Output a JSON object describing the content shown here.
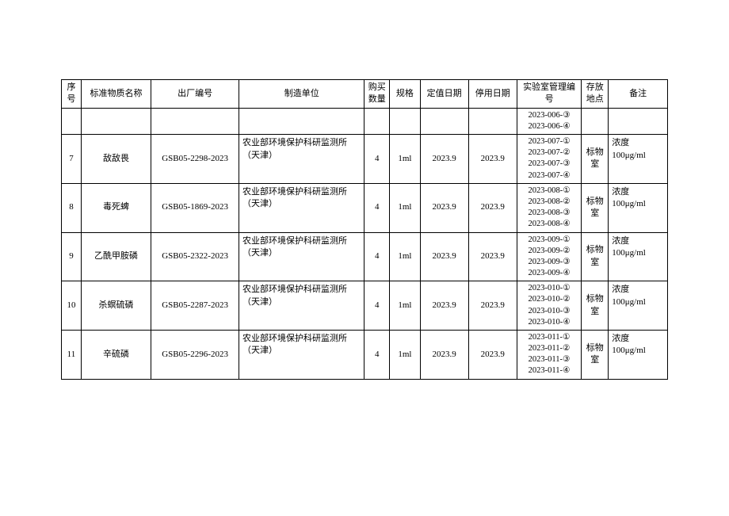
{
  "headers": {
    "seq": "序号",
    "name": "标准物质名称",
    "factory_no": "出厂编号",
    "manufacturer": "制造单位",
    "qty": "购买数量",
    "spec": "规格",
    "cal_date": "定值日期",
    "exp_date": "停用日期",
    "lab_no": "实验室管理编号",
    "location": "存放地点",
    "remark": "备注"
  },
  "top_row": {
    "lab1": "2023-006-③",
    "lab2": "2023-006-④"
  },
  "rows": [
    {
      "seq": "7",
      "name": "敌敌畏",
      "factory_no": "GSB05-2298-2023",
      "mfg1": "农业部环境保护科研监测所",
      "mfg2": "（天津）",
      "qty": "4",
      "spec": "1ml",
      "cal_date": "2023.9",
      "exp_date": "2023.9",
      "lab1": "2023-007-①",
      "lab2": "2023-007-②",
      "lab3": "2023-007-③",
      "lab4": "2023-007-④",
      "location": "标物室",
      "note1": "浓度",
      "note2": "100μg/ml"
    },
    {
      "seq": "8",
      "name": "毒死蜱",
      "factory_no": "GSB05-1869-2023",
      "mfg1": "农业部环境保护科研监测所",
      "mfg2": "（天津）",
      "qty": "4",
      "spec": "1ml",
      "cal_date": "2023.9",
      "exp_date": "2023.9",
      "lab1": "2023-008-①",
      "lab2": "2023-008-②",
      "lab3": "2023-008-③",
      "lab4": "2023-008-④",
      "location": "标物室",
      "note1": "浓度",
      "note2": "100μg/ml"
    },
    {
      "seq": "9",
      "name": "乙酰甲胺磷",
      "factory_no": "GSB05-2322-2023",
      "mfg1": "农业部环境保护科研监测所",
      "mfg2": "（天津）",
      "qty": "4",
      "spec": "1ml",
      "cal_date": "2023.9",
      "exp_date": "2023.9",
      "lab1": "2023-009-①",
      "lab2": "2023-009-②",
      "lab3": "2023-009-③",
      "lab4": "2023-009-④",
      "location": "标物室",
      "note1": "浓度",
      "note2": "100μg/ml"
    },
    {
      "seq": "10",
      "name": "杀螟硫磷",
      "factory_no": "GSB05-2287-2023",
      "mfg1": "农业部环境保护科研监测所",
      "mfg2": "（天津）",
      "qty": "4",
      "spec": "1ml",
      "cal_date": "2023.9",
      "exp_date": "2023.9",
      "lab1": "2023-010-①",
      "lab2": "2023-010-②",
      "lab3": "2023-010-③",
      "lab4": "2023-010-④",
      "location": "标物室",
      "note1": "浓度",
      "note2": "100μg/ml"
    },
    {
      "seq": "11",
      "name": "辛硫磷",
      "factory_no": "GSB05-2296-2023",
      "mfg1": "农业部环境保护科研监测所",
      "mfg2": "（天津）",
      "qty": "4",
      "spec": "1ml",
      "cal_date": "2023.9",
      "exp_date": "2023.9",
      "lab1": "2023-011-①",
      "lab2": "2023-011-②",
      "lab3": "2023-011-③",
      "lab4": "2023-011-④",
      "location": "标物室",
      "note1": "浓度",
      "note2": "100μg/ml"
    }
  ]
}
